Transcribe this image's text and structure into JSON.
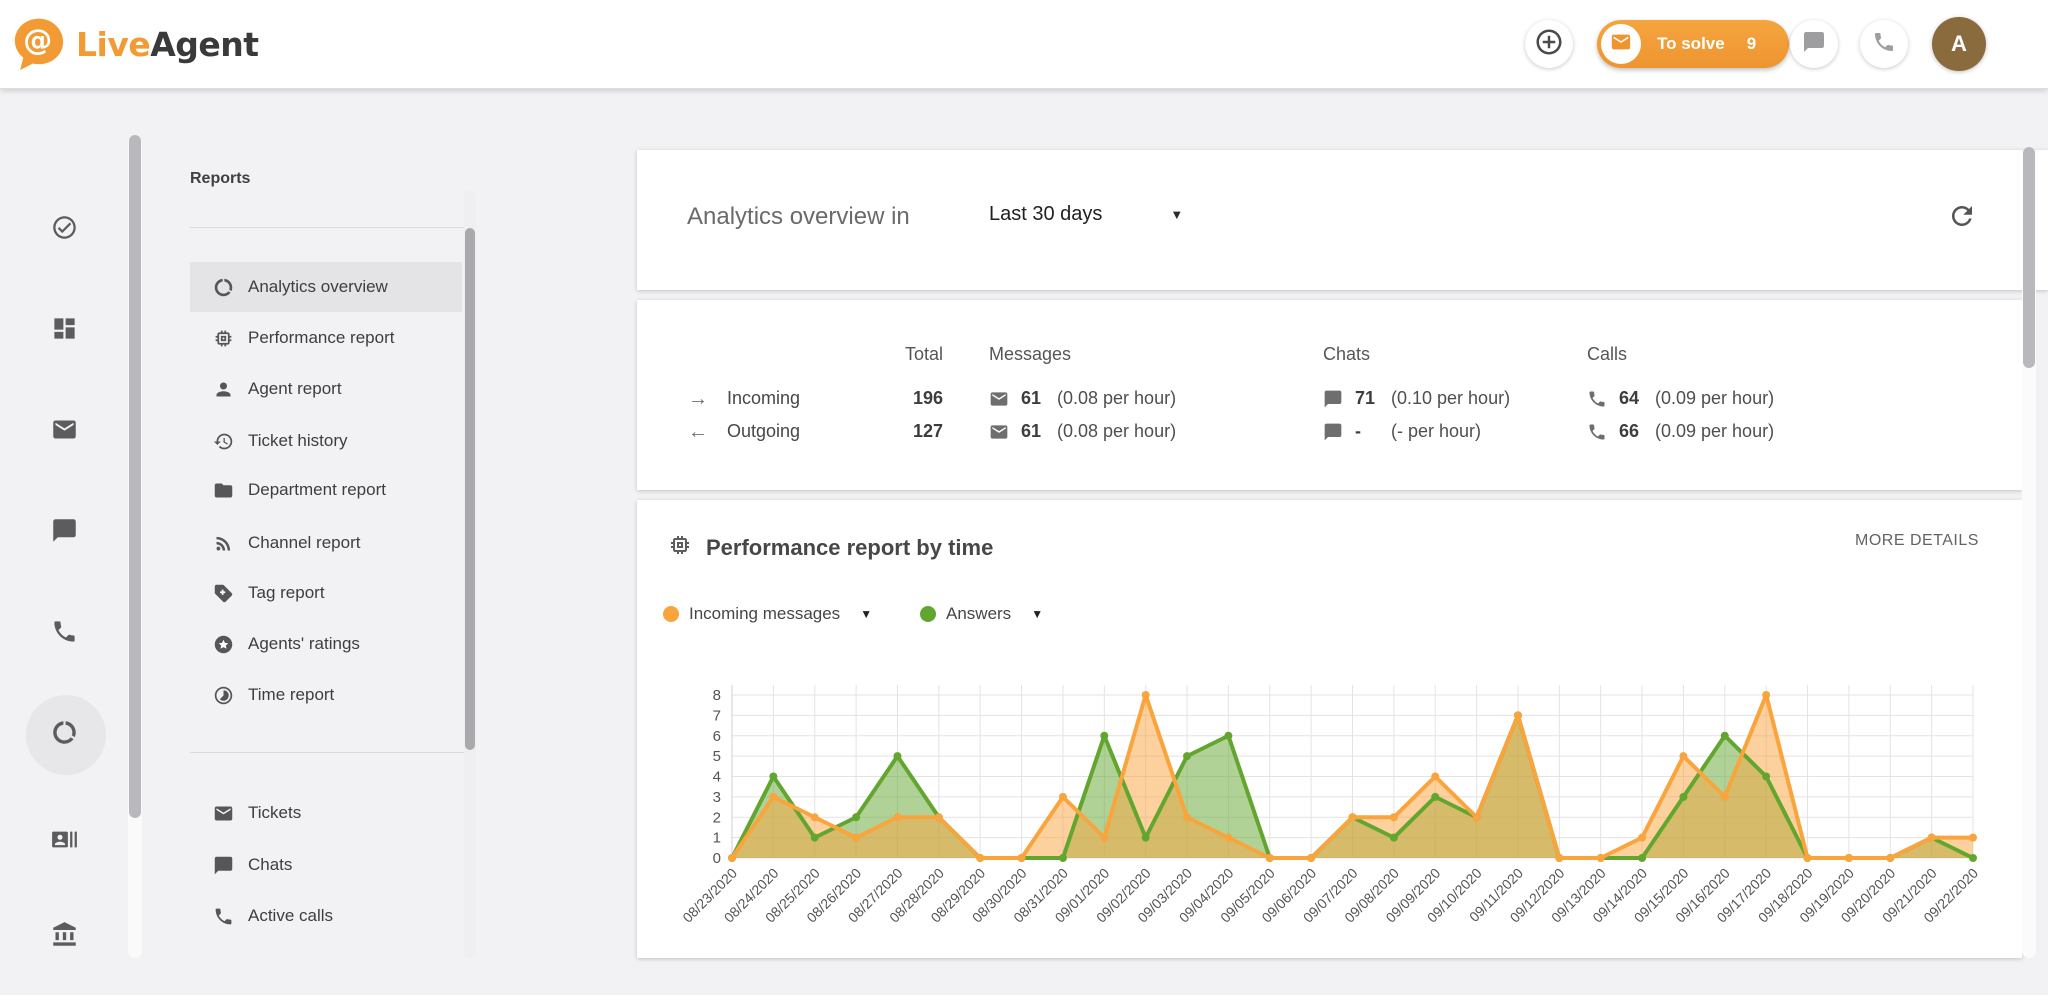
{
  "topbar": {
    "logo": {
      "at_symbol": "@",
      "live": "Live",
      "agent": "Agent"
    },
    "to_solve": {
      "label": "To solve",
      "count": "9"
    },
    "avatar_initial": "A"
  },
  "rail": {
    "items": [
      {
        "icon": "check-circle"
      },
      {
        "icon": "dashboard"
      },
      {
        "icon": "mail"
      },
      {
        "icon": "chat"
      },
      {
        "icon": "phone"
      },
      {
        "icon": "donut",
        "active": true
      },
      {
        "icon": "contact-card"
      },
      {
        "icon": "bank"
      }
    ]
  },
  "reports_menu": {
    "title": "Reports",
    "items": [
      {
        "icon": "donut",
        "label": "Analytics overview",
        "active": true
      },
      {
        "icon": "memory",
        "label": "Performance report"
      },
      {
        "icon": "person",
        "label": "Agent report"
      },
      {
        "icon": "history",
        "label": "Ticket history"
      },
      {
        "icon": "folder",
        "label": "Department report"
      },
      {
        "icon": "rss",
        "label": "Channel report"
      },
      {
        "icon": "tag",
        "label": "Tag report"
      },
      {
        "icon": "star-circle",
        "label": "Agents' ratings"
      },
      {
        "icon": "time-half",
        "label": "Time report"
      }
    ],
    "footer_items": [
      {
        "icon": "mail",
        "label": "Tickets"
      },
      {
        "icon": "chat",
        "label": "Chats"
      },
      {
        "icon": "phone",
        "label": "Active calls"
      }
    ]
  },
  "header": {
    "title": "Analytics overview in",
    "range_value": "Last 30 days"
  },
  "stats": {
    "headers": {
      "total": "Total",
      "messages": "Messages",
      "chats": "Chats",
      "calls": "Calls"
    },
    "rows": [
      {
        "arrow": "→",
        "name": "incoming",
        "label": "Incoming",
        "total": "196",
        "messages_value": "61",
        "messages_rate": "(0.08 per hour)",
        "chats_value": "71",
        "chats_rate": "(0.10 per hour)",
        "calls_value": "64",
        "calls_rate": "(0.09 per hour)"
      },
      {
        "arrow": "←",
        "name": "outgoing",
        "label": "Outgoing",
        "total": "127",
        "messages_value": "61",
        "messages_rate": "(0.08 per hour)",
        "chats_value": "-",
        "chats_rate": "(- per hour)",
        "calls_value": "66",
        "calls_rate": "(0.09 per hour)"
      }
    ]
  },
  "performance": {
    "title": "Performance report by time",
    "more_details": "MORE DETAILS"
  },
  "chart_data": {
    "type": "area",
    "title": "Performance report by time",
    "categories": [
      "08/23/2020",
      "08/24/2020",
      "08/25/2020",
      "08/26/2020",
      "08/27/2020",
      "08/28/2020",
      "08/29/2020",
      "08/30/2020",
      "08/31/2020",
      "09/01/2020",
      "09/02/2020",
      "09/03/2020",
      "09/04/2020",
      "09/05/2020",
      "09/06/2020",
      "09/07/2020",
      "09/08/2020",
      "09/09/2020",
      "09/10/2020",
      "09/11/2020",
      "09/12/2020",
      "09/13/2020",
      "09/14/2020",
      "09/15/2020",
      "09/16/2020",
      "09/17/2020",
      "09/18/2020",
      "09/19/2020",
      "09/20/2020",
      "09/21/2020",
      "09/22/2020"
    ],
    "series": [
      {
        "name": "Incoming messages",
        "color": "#F9A43D",
        "values": [
          0,
          3,
          2,
          1,
          2,
          2,
          0,
          0,
          3,
          1,
          8,
          2,
          1,
          0,
          0,
          2,
          2,
          4,
          2,
          7,
          0,
          0,
          1,
          5,
          3,
          8,
          0,
          0,
          0,
          1,
          1
        ]
      },
      {
        "name": "Answers",
        "color": "#63A62F",
        "values": [
          0,
          4,
          1,
          2,
          5,
          2,
          0,
          0,
          0,
          6,
          1,
          5,
          6,
          0,
          0,
          2,
          1,
          3,
          2,
          7,
          0,
          0,
          0,
          3,
          6,
          4,
          0,
          0,
          0,
          1,
          0
        ]
      }
    ],
    "xlabel": "",
    "ylabel": "",
    "ylim": [
      0,
      8
    ],
    "yticks": [
      0,
      1,
      2,
      3,
      4,
      5,
      6,
      7,
      8
    ],
    "grid": true,
    "legend_position": "top-left"
  },
  "colors": {
    "brand_orange": "#F29A33",
    "series_orange": "#F9A43D",
    "series_green": "#63A62F",
    "selected_bg": "#e4e4e6",
    "avatar_bg": "#8a6b3e"
  }
}
